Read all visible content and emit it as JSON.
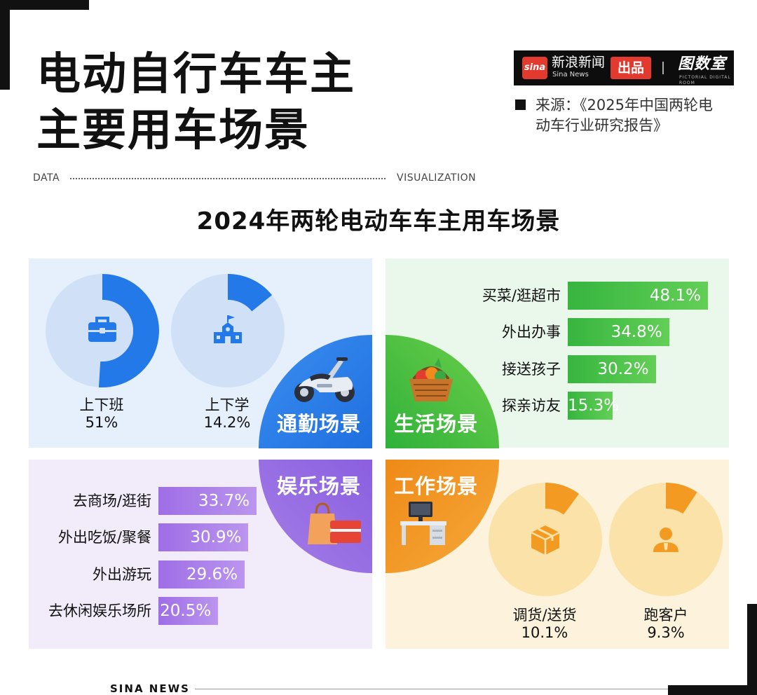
{
  "header": {
    "title_line1": "电动自行车车主",
    "title_line2": "主要用车场景",
    "brand_logo_text": "sina",
    "brand_name": "新浪新闻",
    "brand_name_en": "Sina News",
    "brand_tag": "出品",
    "brand_room": "图数室",
    "brand_room_en": "PICTORIAL DIGITAL ROOM",
    "source_line1": "来源：《2025年中国两轮电",
    "source_line2": "动车行业研究报告》",
    "data_label": "DATA",
    "viz_label": "VISUALIZATION"
  },
  "footer": {
    "text": "SINA NEWS"
  },
  "colors": {
    "commute": "#2479e8",
    "life": "#3cb83f",
    "leisure": "#9467e3",
    "work": "#f29a22",
    "donut_track_blue": "#cfe0f7",
    "donut_track_orange": "#fbe2a9"
  },
  "chart_data": {
    "title": "2024年两轮电动车车主用车场景",
    "panels": [
      {
        "name": "通勤场景",
        "type": "pie",
        "items": [
          {
            "label": "上下班",
            "value": 51,
            "display": "51%",
            "icon": "briefcase-icon"
          },
          {
            "label": "上下学",
            "value": 14.2,
            "display": "14.2%",
            "icon": "school-icon"
          }
        ]
      },
      {
        "name": "生活场景",
        "type": "bar",
        "items": [
          {
            "label": "买菜/逛超市",
            "value": 48.1,
            "display": "48.1%"
          },
          {
            "label": "外出办事",
            "value": 34.8,
            "display": "34.8%"
          },
          {
            "label": "接送孩子",
            "value": 30.2,
            "display": "30.2%"
          },
          {
            "label": "探亲访友",
            "value": 15.3,
            "display": "15.3%"
          }
        ]
      },
      {
        "name": "娱乐场景",
        "type": "bar",
        "items": [
          {
            "label": "去商场/逛街",
            "value": 33.7,
            "display": "33.7%"
          },
          {
            "label": "外出吃饭/聚餐",
            "value": 30.9,
            "display": "30.9%"
          },
          {
            "label": "外出游玩",
            "value": 29.6,
            "display": "29.6%"
          },
          {
            "label": "去休闲娱乐场所",
            "value": 20.5,
            "display": "20.5%"
          }
        ]
      },
      {
        "name": "工作场景",
        "type": "pie",
        "items": [
          {
            "label": "调货/送货",
            "value": 10.1,
            "display": "10.1%",
            "icon": "package-icon"
          },
          {
            "label": "跑客户",
            "value": 9.3,
            "display": "9.3%",
            "icon": "person-icon"
          }
        ]
      }
    ]
  }
}
